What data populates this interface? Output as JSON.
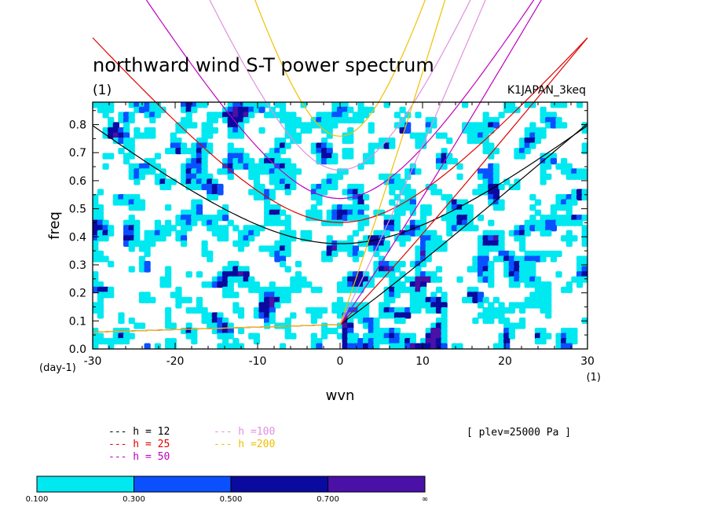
{
  "colors": {
    "background": "#ffffff",
    "axis": "#000000",
    "contour_0": "#00e8f0",
    "contour_1": "#0a50ff",
    "contour_2": "#0a0aa0",
    "contour_3": "#4a10a8"
  },
  "chart_data": {
    "type": "heatmap",
    "title": "northward wind S-T power spectrum",
    "subtitle": "(1)",
    "dataset_label": "K1JAPAN_3keq",
    "xlabel": "wvn",
    "ylabel": "freq",
    "x_unit_label": "(1)",
    "y_unit_label": "(day-1)",
    "xlim": [
      -30,
      30
    ],
    "ylim": [
      0.0,
      0.88
    ],
    "xticks": [
      "-30",
      "-20",
      "-10",
      "0",
      "10",
      "20",
      "30"
    ],
    "yticks": [
      "0.0",
      "0.1",
      "0.2",
      "0.3",
      "0.4",
      "0.5",
      "0.6",
      "0.7",
      "0.8"
    ],
    "contour_levels": [
      "0.100",
      "0.300",
      "0.500",
      "0.700",
      "∞"
    ],
    "contour_colors": [
      "#00e8f0",
      "#0a50ff",
      "#0a0aa0",
      "#4a10a8"
    ],
    "info_label": "[ plev=25000 Pa ]",
    "series": [
      {
        "name": "h = 12",
        "color": "#000000",
        "legend": "---  h = 12"
      },
      {
        "name": "h = 25",
        "color": "#e00000",
        "legend": "---  h = 25"
      },
      {
        "name": "h = 50",
        "color": "#c000c0",
        "legend": "---  h = 50"
      },
      {
        "name": "h =100",
        "color": "#e090e0",
        "legend": "---  h =100"
      },
      {
        "name": "h =200",
        "color": "#f0c000",
        "legend": "---  h =200"
      }
    ]
  }
}
